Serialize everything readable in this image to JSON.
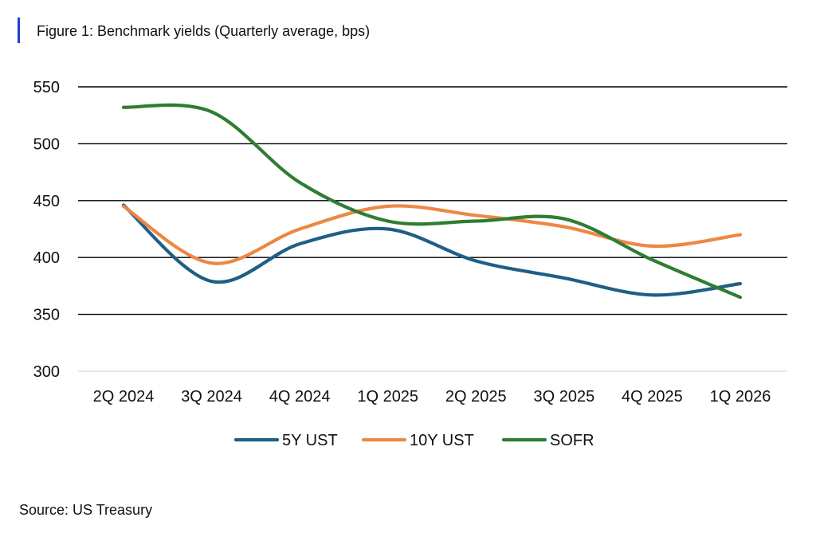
{
  "header": {
    "title": "Figure 1: Benchmark yields (Quarterly average, bps)"
  },
  "footer": {
    "source": "Source: US Treasury"
  },
  "chart_data": {
    "type": "line",
    "title": "Figure 1: Benchmark yields (Quarterly average, bps)",
    "xlabel": "",
    "ylabel": "",
    "categories": [
      "2Q 2024",
      "3Q 2024",
      "4Q 2024",
      "1Q 2025",
      "2Q 2025",
      "3Q 2025",
      "4Q 2025",
      "1Q 2026"
    ],
    "ylim": [
      300,
      550
    ],
    "yticks": [
      300,
      350,
      400,
      450,
      500,
      550
    ],
    "grid": true,
    "legend_position": "bottom",
    "smooth": true,
    "series": [
      {
        "name": "5Y UST",
        "color": "#1f5f86",
        "values": [
          446,
          379,
          412,
          425,
          397,
          382,
          367,
          377
        ]
      },
      {
        "name": "10Y UST",
        "color": "#ee8743",
        "values": [
          445,
          395,
          425,
          445,
          437,
          427,
          410,
          420
        ]
      },
      {
        "name": "SOFR",
        "color": "#2e7d32",
        "values": [
          532,
          528,
          466,
          432,
          432,
          434,
          398,
          365
        ]
      }
    ]
  }
}
